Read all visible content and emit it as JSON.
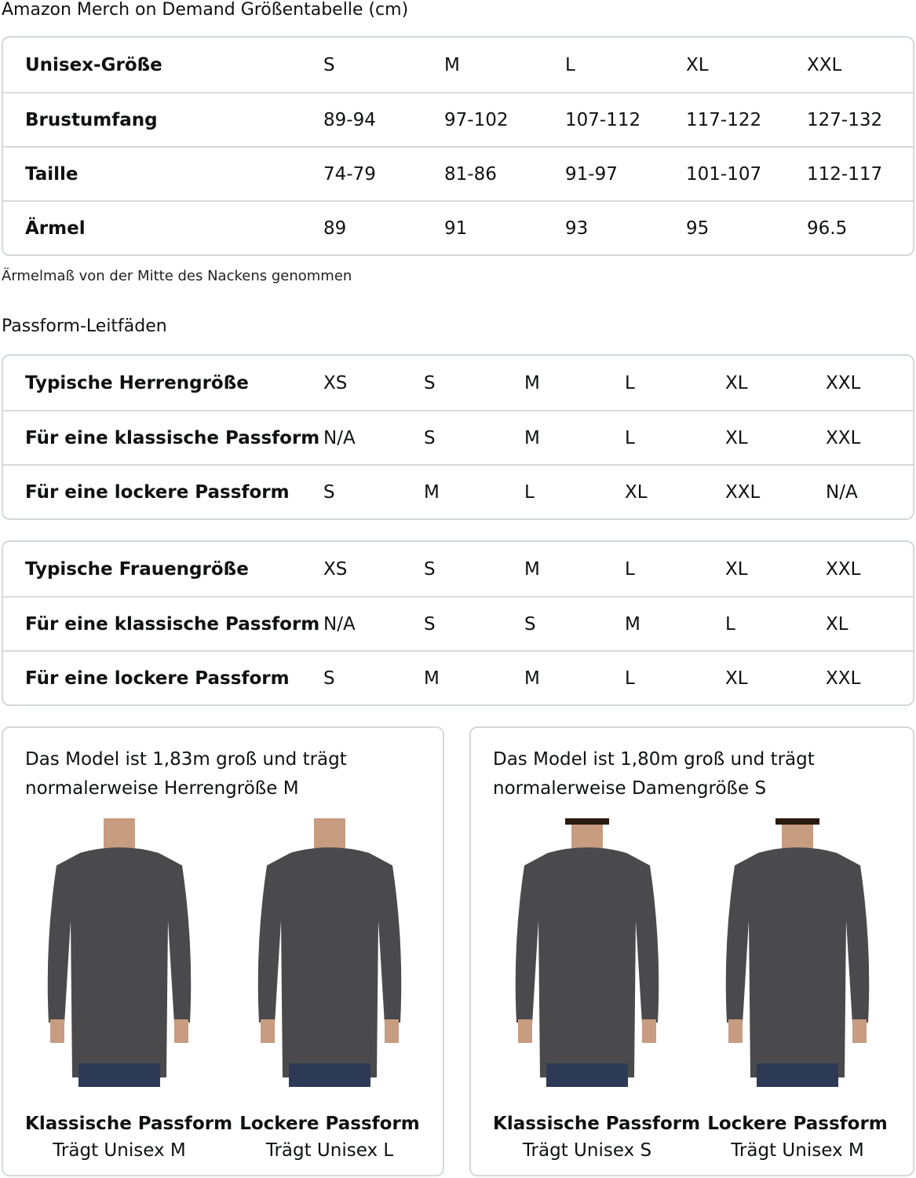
{
  "title": "Amazon Merch on Demand Größentabelle (cm)",
  "unisex": {
    "rows": [
      {
        "label": "Unisex-Größe",
        "values": [
          "S",
          "M",
          "L",
          "XL",
          "XXL"
        ]
      },
      {
        "label": "Brustumfang",
        "values": [
          "89-94",
          "97-102",
          "107-112",
          "117-122",
          "127-132"
        ]
      },
      {
        "label": "Taille",
        "values": [
          "74-79",
          "81-86",
          "91-97",
          "101-107",
          "112-117"
        ]
      },
      {
        "label": "Ärmel",
        "values": [
          "89",
          "91",
          "93",
          "95",
          "96.5"
        ]
      }
    ]
  },
  "note": "Ärmelmaß von der Mitte des Nackens genommen",
  "fit_title": "Passform-Leitfäden",
  "men": {
    "rows": [
      {
        "label": "Typische Herrengröße",
        "values": [
          "XS",
          "S",
          "M",
          "L",
          "XL",
          "XXL"
        ]
      },
      {
        "label": "Für eine klassische Passform",
        "values": [
          "N/A",
          "S",
          "M",
          "L",
          "XL",
          "XXL"
        ]
      },
      {
        "label": "Für eine lockere Passform",
        "values": [
          "S",
          "M",
          "L",
          "XL",
          "XXL",
          "N/A"
        ]
      }
    ]
  },
  "women": {
    "rows": [
      {
        "label": "Typische Frauengröße",
        "values": [
          "XS",
          "S",
          "M",
          "L",
          "XL",
          "XXL"
        ]
      },
      {
        "label": "Für eine klassische Passform",
        "values": [
          "N/A",
          "S",
          "S",
          "M",
          "L",
          "XL"
        ]
      },
      {
        "label": "Für eine lockere Passform",
        "values": [
          "S",
          "M",
          "M",
          "L",
          "XL",
          "XXL"
        ]
      }
    ]
  },
  "cards": [
    {
      "text": "Das Model ist 1,83m groß und trägt normalerweise Herrengröße M",
      "figures": [
        {
          "title": "Klassische Passform",
          "sub": "Trägt Unisex M"
        },
        {
          "title": "Lockere Passform",
          "sub": "Trägt Unisex L"
        }
      ]
    },
    {
      "text": "Das Model ist 1,80m groß und trägt normalerweise Damengröße S",
      "figures": [
        {
          "title": "Klassische Passform",
          "sub": "Trägt Unisex S"
        },
        {
          "title": "Lockere Passform",
          "sub": "Trägt Unisex M"
        }
      ]
    }
  ],
  "colors": {
    "sweatshirt": "#4a4a4c",
    "jeans": "#2c3a55",
    "border": "#d5d9d9"
  }
}
